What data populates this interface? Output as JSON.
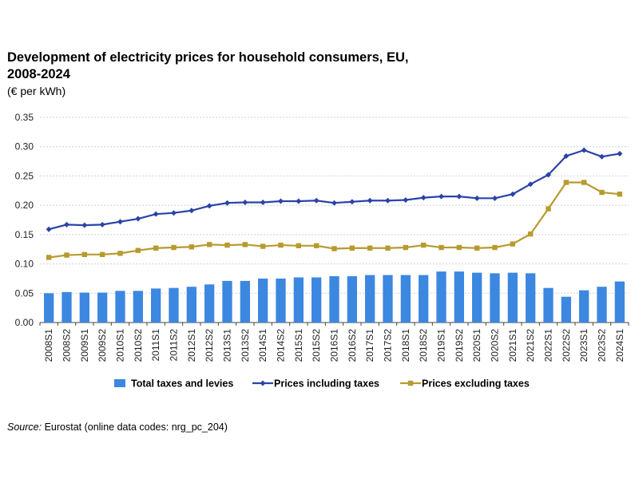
{
  "chart_data": {
    "type": "bar+line",
    "title_line1": "Development of electricity prices for household consumers, EU,",
    "title_line2": "2008-2024",
    "unit_label": "(€ per kWh)",
    "categories": [
      "2008S1",
      "2008S2",
      "2009S1",
      "2009S2",
      "2010S1",
      "2010S2",
      "2011S1",
      "2011S2",
      "2012S1",
      "2012S2",
      "2013S1",
      "2013S2",
      "2014S1",
      "2014S2",
      "2015S1",
      "2015S2",
      "2016S1",
      "2016S2",
      "2017S1",
      "2017S2",
      "2018S1",
      "2018S2",
      "2019S1",
      "2019S2",
      "2020S1",
      "2020S2",
      "2021S1",
      "2021S2",
      "2022S1",
      "2022S2",
      "2023S1",
      "2023S2",
      "2024S1"
    ],
    "ylim": [
      0,
      0.35
    ],
    "yticks": [
      "0.00",
      "0.05",
      "0.10",
      "0.15",
      "0.20",
      "0.25",
      "0.30",
      "0.35"
    ],
    "grid": true,
    "series": [
      {
        "name": "Total taxes and levies",
        "kind": "bar",
        "color": "#3c87e0",
        "values": [
          0.05,
          0.052,
          0.051,
          0.051,
          0.054,
          0.054,
          0.058,
          0.059,
          0.061,
          0.065,
          0.071,
          0.071,
          0.075,
          0.075,
          0.077,
          0.077,
          0.079,
          0.079,
          0.081,
          0.081,
          0.081,
          0.081,
          0.087,
          0.087,
          0.085,
          0.084,
          0.085,
          0.084,
          0.059,
          0.044,
          0.055,
          0.061,
          0.07
        ]
      },
      {
        "name": "Prices including taxes",
        "kind": "line",
        "color": "#2a43a8",
        "marker": "diamond",
        "values": [
          0.159,
          0.167,
          0.166,
          0.167,
          0.172,
          0.177,
          0.185,
          0.187,
          0.191,
          0.199,
          0.204,
          0.205,
          0.205,
          0.207,
          0.207,
          0.208,
          0.204,
          0.206,
          0.208,
          0.208,
          0.209,
          0.213,
          0.215,
          0.215,
          0.212,
          0.212,
          0.219,
          0.236,
          0.252,
          0.284,
          0.294,
          0.283,
          0.288
        ]
      },
      {
        "name": "Prices excluding taxes",
        "kind": "line",
        "color": "#b89a2e",
        "marker": "square",
        "values": [
          0.111,
          0.115,
          0.116,
          0.116,
          0.118,
          0.123,
          0.127,
          0.128,
          0.129,
          0.133,
          0.132,
          0.133,
          0.13,
          0.132,
          0.131,
          0.131,
          0.126,
          0.127,
          0.127,
          0.127,
          0.128,
          0.132,
          0.128,
          0.128,
          0.127,
          0.128,
          0.134,
          0.151,
          0.194,
          0.239,
          0.239,
          0.222,
          0.219
        ]
      }
    ],
    "legend_position": "bottom",
    "legend": [
      "Total taxes and levies",
      "Prices including taxes",
      "Prices excluding taxes"
    ]
  },
  "source": {
    "label": "Source:",
    "text": " Eurostat (online data codes: nrg_pc_204)"
  }
}
